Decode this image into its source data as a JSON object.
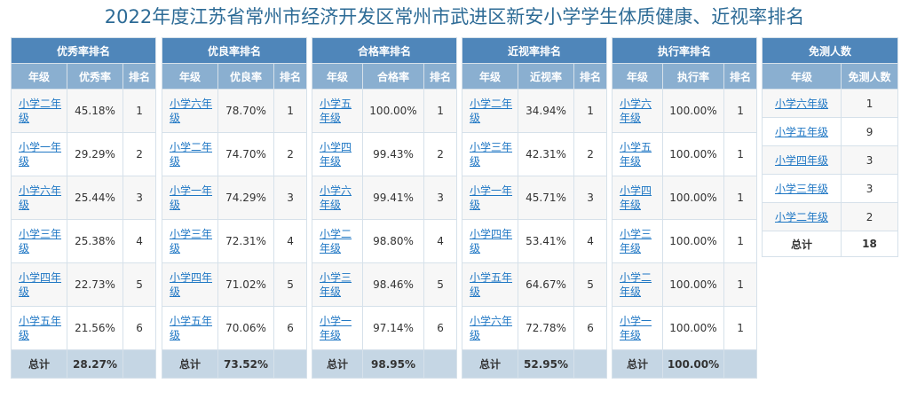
{
  "title": "2022年度江苏省常州市经济开发区常州市武进区新安小学学生体质健康、近视率排名",
  "columns": {
    "grade": "年级",
    "rank": "排名",
    "total": "总计"
  },
  "panels": [
    {
      "caption": "优秀率排名",
      "metric": "优秀率",
      "rows": [
        {
          "grade": "小学二年级",
          "value": "45.18%",
          "rank": "1"
        },
        {
          "grade": "小学一年级",
          "value": "29.29%",
          "rank": "2"
        },
        {
          "grade": "小学六年级",
          "value": "25.44%",
          "rank": "3"
        },
        {
          "grade": "小学三年级",
          "value": "25.38%",
          "rank": "4"
        },
        {
          "grade": "小学四年级",
          "value": "22.73%",
          "rank": "5"
        },
        {
          "grade": "小学五年级",
          "value": "21.56%",
          "rank": "6"
        }
      ],
      "total": "28.27%"
    },
    {
      "caption": "优良率排名",
      "metric": "优良率",
      "rows": [
        {
          "grade": "小学六年级",
          "value": "78.70%",
          "rank": "1"
        },
        {
          "grade": "小学二年级",
          "value": "74.70%",
          "rank": "2"
        },
        {
          "grade": "小学一年级",
          "value": "74.29%",
          "rank": "3"
        },
        {
          "grade": "小学三年级",
          "value": "72.31%",
          "rank": "4"
        },
        {
          "grade": "小学四年级",
          "value": "71.02%",
          "rank": "5"
        },
        {
          "grade": "小学五年级",
          "value": "70.06%",
          "rank": "6"
        }
      ],
      "total": "73.52%"
    },
    {
      "caption": "合格率排名",
      "metric": "合格率",
      "rows": [
        {
          "grade": "小学五年级",
          "value": "100.00%",
          "rank": "1"
        },
        {
          "grade": "小学四年级",
          "value": "99.43%",
          "rank": "2"
        },
        {
          "grade": "小学六年级",
          "value": "99.41%",
          "rank": "3"
        },
        {
          "grade": "小学二年级",
          "value": "98.80%",
          "rank": "4"
        },
        {
          "grade": "小学三年级",
          "value": "98.46%",
          "rank": "5"
        },
        {
          "grade": "小学一年级",
          "value": "97.14%",
          "rank": "6"
        }
      ],
      "total": "98.95%"
    },
    {
      "caption": "近视率排名",
      "metric": "近视率",
      "rows": [
        {
          "grade": "小学二年级",
          "value": "34.94%",
          "rank": "1"
        },
        {
          "grade": "小学三年级",
          "value": "42.31%",
          "rank": "2"
        },
        {
          "grade": "小学一年级",
          "value": "45.71%",
          "rank": "3"
        },
        {
          "grade": "小学四年级",
          "value": "53.41%",
          "rank": "4"
        },
        {
          "grade": "小学五年级",
          "value": "64.67%",
          "rank": "5"
        },
        {
          "grade": "小学六年级",
          "value": "72.78%",
          "rank": "6"
        }
      ],
      "total": "52.95%"
    },
    {
      "caption": "执行率排名",
      "metric": "执行率",
      "rows": [
        {
          "grade": "小学六年级",
          "value": "100.00%",
          "rank": "1"
        },
        {
          "grade": "小学五年级",
          "value": "100.00%",
          "rank": "1"
        },
        {
          "grade": "小学四年级",
          "value": "100.00%",
          "rank": "1"
        },
        {
          "grade": "小学三年级",
          "value": "100.00%",
          "rank": "1"
        },
        {
          "grade": "小学二年级",
          "value": "100.00%",
          "rank": "1"
        },
        {
          "grade": "小学一年级",
          "value": "100.00%",
          "rank": "1"
        }
      ],
      "total": "100.00%"
    }
  ],
  "exempt": {
    "caption": "免测人数",
    "grade_header": "年级",
    "count_header": "免测人数",
    "rows": [
      {
        "grade": "小学六年级",
        "count": "1"
      },
      {
        "grade": "小学五年级",
        "count": "9"
      },
      {
        "grade": "小学四年级",
        "count": "3"
      },
      {
        "grade": "小学三年级",
        "count": "3"
      },
      {
        "grade": "小学二年级",
        "count": "2"
      }
    ],
    "total_label": "总计",
    "total": "18"
  }
}
